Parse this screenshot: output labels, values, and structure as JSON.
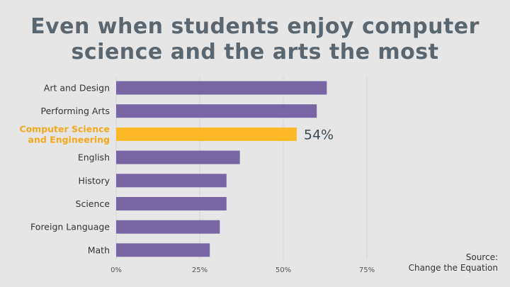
{
  "title_lines": [
    "Even when students enjoy computer",
    "science and the arts the most"
  ],
  "source_lines": [
    "Source:",
    "Change the Equation"
  ],
  "chart_data": {
    "type": "bar",
    "orientation": "horizontal",
    "title": "Even when students enjoy computer science and the arts the most",
    "categories": [
      [
        "Art and Design"
      ],
      [
        "Performing Arts"
      ],
      [
        "Computer Science",
        "and Engineering"
      ],
      [
        "English"
      ],
      [
        "History"
      ],
      [
        "Science"
      ],
      [
        "Foreign Language"
      ],
      [
        "Math"
      ]
    ],
    "values": [
      63,
      60,
      54,
      37,
      33,
      33,
      31,
      28
    ],
    "highlight_index": 2,
    "highlight_label": "54%",
    "xlim": [
      0,
      75
    ],
    "xticks": [
      0,
      25,
      50,
      75
    ],
    "xtick_labels": [
      "0%",
      "25%",
      "50%",
      "75%"
    ],
    "grid": true,
    "colors": {
      "bar": "#7766a3",
      "highlight": "#fdb825",
      "label": "#333333",
      "highlight_text": "#f4a81c",
      "value_label": "#3c4a55",
      "grid": "#d4d4d4",
      "tick": "#555555"
    }
  }
}
